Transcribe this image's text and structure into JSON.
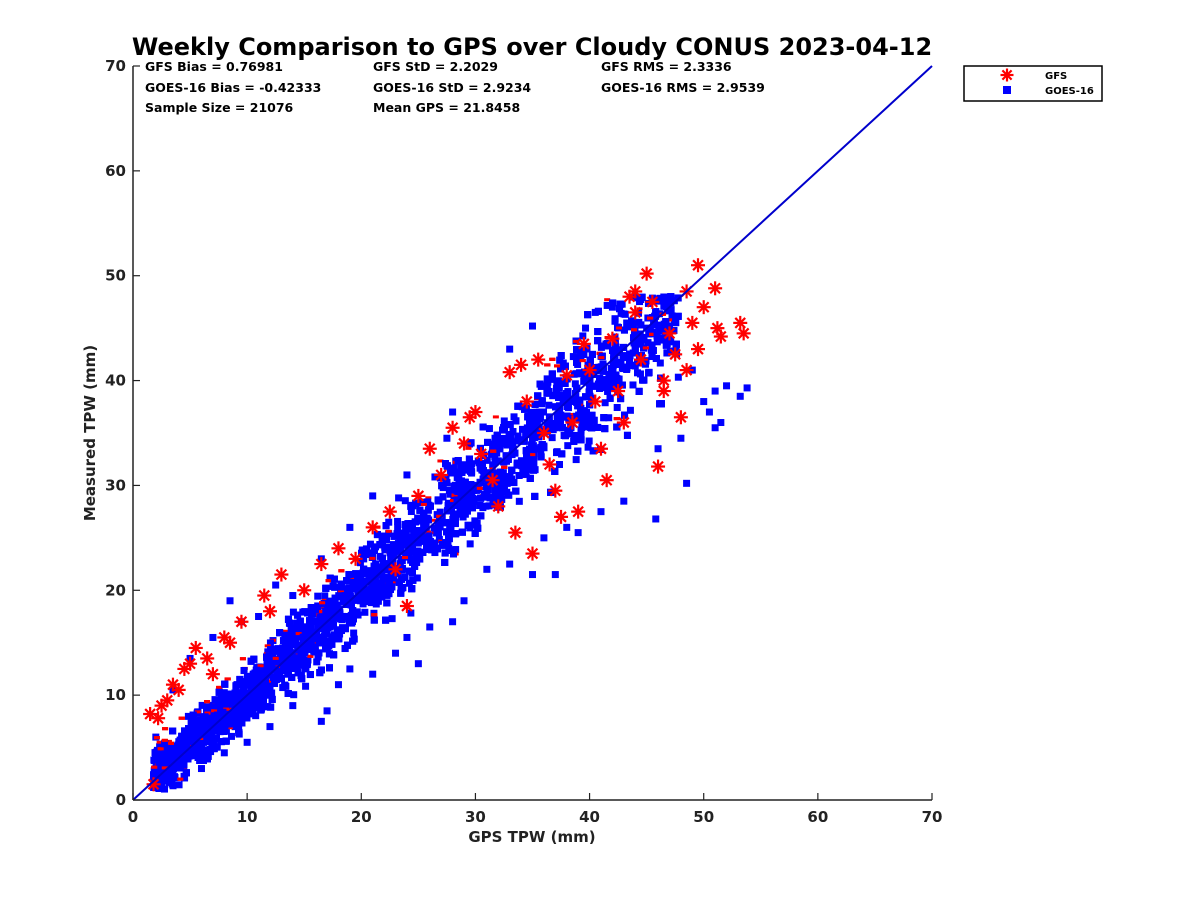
{
  "chart_data": {
    "type": "scatter",
    "title": "Weekly Comparison to GPS over Cloudy CONUS 2023-04-12",
    "xlabel": "GPS TPW (mm)",
    "ylabel": "Measured TPW (mm)",
    "xlim": [
      0,
      70
    ],
    "ylim": [
      0,
      70
    ],
    "xticks": [
      0,
      10,
      20,
      30,
      40,
      50,
      60,
      70
    ],
    "yticks": [
      0,
      10,
      20,
      30,
      40,
      50,
      60,
      70
    ],
    "grid": false,
    "legend_position": "outside-top-right",
    "reference_line": {
      "x": [
        0,
        70
      ],
      "y": [
        0,
        70
      ],
      "color": "#0000cc"
    },
    "stats": [
      [
        "GFS Bias = 0.76981",
        "GFS StD = 2.2029",
        "GFS RMS = 2.3336"
      ],
      [
        "GOES-16 Bias = -0.42333",
        "GOES-16 StD = 2.9234",
        "GOES-16 RMS = 2.9539"
      ],
      [
        "Sample Size = 21076",
        "Mean GPS = 21.8458"
      ]
    ],
    "series": [
      {
        "name": "GFS",
        "marker": "asterisk",
        "color": "#ff0000",
        "points": [
          [
            1.5,
            8.2
          ],
          [
            1.8,
            1.5
          ],
          [
            2.2,
            7.8
          ],
          [
            2.5,
            9.0
          ],
          [
            3.0,
            9.5
          ],
          [
            3.5,
            11.0
          ],
          [
            4.0,
            10.5
          ],
          [
            4.5,
            12.5
          ],
          [
            5.0,
            13.0
          ],
          [
            5.5,
            14.5
          ],
          [
            6.5,
            13.5
          ],
          [
            7.0,
            12.0
          ],
          [
            8.0,
            15.5
          ],
          [
            8.5,
            15.0
          ],
          [
            9.5,
            17.0
          ],
          [
            11.5,
            19.5
          ],
          [
            12.0,
            18.0
          ],
          [
            13.0,
            21.5
          ],
          [
            15.0,
            20.0
          ],
          [
            16.5,
            22.5
          ],
          [
            18.0,
            24.0
          ],
          [
            19.5,
            23.0
          ],
          [
            21.0,
            26.0
          ],
          [
            22.5,
            27.5
          ],
          [
            23.0,
            22.0
          ],
          [
            24.0,
            18.5
          ],
          [
            25.0,
            29.0
          ],
          [
            26.0,
            33.5
          ],
          [
            27.0,
            31.0
          ],
          [
            28.0,
            35.5
          ],
          [
            29.0,
            34.0
          ],
          [
            29.5,
            36.5
          ],
          [
            30.0,
            37.0
          ],
          [
            30.5,
            33.0
          ],
          [
            31.5,
            30.5
          ],
          [
            32.0,
            28.0
          ],
          [
            33.0,
            40.8
          ],
          [
            33.5,
            25.5
          ],
          [
            34.0,
            41.5
          ],
          [
            34.5,
            38.0
          ],
          [
            35.0,
            23.5
          ],
          [
            35.5,
            42.0
          ],
          [
            36.0,
            35.0
          ],
          [
            36.5,
            32.0
          ],
          [
            37.0,
            29.5
          ],
          [
            37.5,
            27.0
          ],
          [
            38.0,
            40.5
          ],
          [
            38.5,
            36.0
          ],
          [
            39.0,
            27.5
          ],
          [
            39.5,
            43.5
          ],
          [
            40.0,
            41.0
          ],
          [
            40.5,
            38.0
          ],
          [
            41.0,
            33.5
          ],
          [
            41.5,
            30.5
          ],
          [
            42.0,
            44.0
          ],
          [
            42.5,
            39.0
          ],
          [
            43.0,
            36.0
          ],
          [
            43.5,
            48.0
          ],
          [
            44.0,
            46.5
          ],
          [
            44.5,
            42.0
          ],
          [
            45.0,
            50.2
          ],
          [
            45.5,
            47.5
          ],
          [
            46.0,
            31.8
          ],
          [
            46.5,
            40.0
          ],
          [
            47.0,
            44.5
          ],
          [
            47.5,
            42.5
          ],
          [
            48.0,
            36.5
          ],
          [
            48.5,
            48.5
          ],
          [
            49.0,
            45.5
          ],
          [
            49.5,
            51.0
          ],
          [
            49.5,
            43.0
          ],
          [
            50.0,
            47.0
          ],
          [
            51.0,
            48.8
          ],
          [
            51.2,
            45.0
          ],
          [
            51.5,
            44.2
          ],
          [
            53.2,
            45.5
          ],
          [
            53.5,
            44.5
          ],
          [
            44.0,
            48.5
          ],
          [
            46.5,
            39.0
          ],
          [
            48.5,
            41.0
          ]
        ]
      },
      {
        "name": "GOES-16",
        "marker": "square",
        "color": "#0000ff",
        "points": [
          [
            1.8,
            1.2
          ],
          [
            2.5,
            3.0
          ],
          [
            3.5,
            2.5
          ],
          [
            4.5,
            2.2
          ],
          [
            6.0,
            3.0
          ],
          [
            8.0,
            4.5
          ],
          [
            10.0,
            5.5
          ],
          [
            12.0,
            7.0
          ],
          [
            14.0,
            9.0
          ],
          [
            16.5,
            7.5
          ],
          [
            17.0,
            8.5
          ],
          [
            18.0,
            11.0
          ],
          [
            19.0,
            12.5
          ],
          [
            21.0,
            12.0
          ],
          [
            23.0,
            14.0
          ],
          [
            24.0,
            15.5
          ],
          [
            25.0,
            13.0
          ],
          [
            26.0,
            16.5
          ],
          [
            28.0,
            17.0
          ],
          [
            29.0,
            19.0
          ],
          [
            31.0,
            22.0
          ],
          [
            33.0,
            22.5
          ],
          [
            35.0,
            21.5
          ],
          [
            37.0,
            21.5
          ],
          [
            36.0,
            25.0
          ],
          [
            38.0,
            26.0
          ],
          [
            39.0,
            25.5
          ],
          [
            41.0,
            27.5
          ],
          [
            43.0,
            28.5
          ],
          [
            45.8,
            26.8
          ],
          [
            48.5,
            30.2
          ],
          [
            46.0,
            33.5
          ],
          [
            48.0,
            34.5
          ],
          [
            50.5,
            37.0
          ],
          [
            51.0,
            35.5
          ],
          [
            51.5,
            36.0
          ],
          [
            51.0,
            39.0
          ],
          [
            52.0,
            39.5
          ],
          [
            53.2,
            38.5
          ],
          [
            53.8,
            39.3
          ],
          [
            50.0,
            38.0
          ],
          [
            49.0,
            41.0
          ],
          [
            45.0,
            45.0
          ],
          [
            42.0,
            47.0
          ],
          [
            40.5,
            46.5
          ],
          [
            35.0,
            45.2
          ],
          [
            33.0,
            43.0
          ],
          [
            28.0,
            37.0
          ],
          [
            27.5,
            34.5
          ],
          [
            24.0,
            31.0
          ],
          [
            21.0,
            29.0
          ],
          [
            19.0,
            26.0
          ],
          [
            16.5,
            23.0
          ],
          [
            14.0,
            19.5
          ],
          [
            11.0,
            17.5
          ],
          [
            9.5,
            17.0
          ],
          [
            8.5,
            19.0
          ],
          [
            7.0,
            15.5
          ],
          [
            5.0,
            13.5
          ],
          [
            3.5,
            10.5
          ],
          [
            2.0,
            6.0
          ],
          [
            15.0,
            14.5
          ],
          [
            20.0,
            20.0
          ],
          [
            25.0,
            24.5
          ],
          [
            30.0,
            30.0
          ],
          [
            35.0,
            34.5
          ],
          [
            40.0,
            39.5
          ],
          [
            10.0,
            10.0
          ],
          [
            5.0,
            5.5
          ],
          [
            44.0,
            43.5
          ],
          [
            47.0,
            44.0
          ],
          [
            12.5,
            20.5
          ],
          [
            22.0,
            25.0
          ]
        ]
      }
    ]
  }
}
